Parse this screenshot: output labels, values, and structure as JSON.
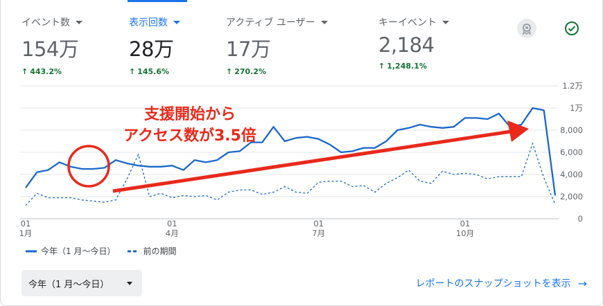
{
  "metrics": [
    {
      "label": "イベント数",
      "value": "154万",
      "change": "443.2%"
    },
    {
      "label": "表示回数",
      "value": "28万",
      "change": "145.6%"
    },
    {
      "label": "アクティブ ユーザー",
      "value": "17万",
      "change": "270.2%"
    },
    {
      "label": "キーイベント",
      "value": "2,184",
      "change": "1,248.1%"
    }
  ],
  "icons": {
    "badge": "award-badge-icon",
    "check": "check-circle-icon"
  },
  "colors": {
    "accent": "#1a73e8",
    "line": "#1a66cc",
    "positive": "#137333",
    "annotation": "#e8291b"
  },
  "annotation": {
    "line1": "支援開始から",
    "line2": "アクセス数が3.5倍"
  },
  "legend": {
    "current": "今年（1 月〜今日）",
    "previous": "前の期間"
  },
  "dropdown": {
    "label": "今年（1 月〜今日）"
  },
  "snapshot_link": "レポートのスナップショットを表示",
  "chart_data": {
    "type": "line",
    "grid": true,
    "y_axis_position": "right",
    "ylim": [
      0,
      12000
    ],
    "yticks": [
      {
        "value": 0,
        "label": "0"
      },
      {
        "value": 2000,
        "label": "2,000"
      },
      {
        "value": 4000,
        "label": "4,000"
      },
      {
        "value": 6000,
        "label": "6,000"
      },
      {
        "value": 8000,
        "label": "8,000"
      },
      {
        "value": 10000,
        "label": "1万"
      },
      {
        "value": 12000,
        "label": "1.2万"
      }
    ],
    "xticks": [
      {
        "index": 0,
        "day": "01",
        "month": "1月"
      },
      {
        "index": 13,
        "day": "01",
        "month": "4月"
      },
      {
        "index": 26,
        "day": "01",
        "month": "7月"
      },
      {
        "index": 39,
        "day": "01",
        "month": "10月"
      }
    ],
    "series": [
      {
        "name": "今年（1 月〜今日）",
        "style": "solid",
        "values": [
          2800,
          4200,
          4400,
          5100,
          4700,
          4500,
          4500,
          4600,
          5300,
          5000,
          4800,
          4700,
          4700,
          4800,
          4400,
          5300,
          5100,
          5300,
          6000,
          6100,
          6900,
          6900,
          8300,
          7000,
          7300,
          7400,
          7200,
          6700,
          6000,
          6100,
          6400,
          6400,
          7000,
          8000,
          8200,
          8500,
          8300,
          8200,
          8300,
          9100,
          9100,
          9000,
          9500,
          8300,
          8500,
          10000,
          9800,
          2100
        ]
      },
      {
        "name": "前の期間",
        "style": "dashed",
        "values": [
          1200,
          2300,
          1900,
          1900,
          1900,
          1700,
          1600,
          1500,
          1700,
          3600,
          5800,
          2000,
          2300,
          1900,
          2100,
          2000,
          2100,
          1700,
          2400,
          2600,
          2600,
          2200,
          2400,
          2900,
          2400,
          2300,
          3300,
          3400,
          3400,
          2900,
          3000,
          2400,
          3200,
          3700,
          4400,
          3400,
          3200,
          4300,
          4000,
          4100,
          4000,
          3600,
          3800,
          3800,
          3800,
          6800,
          3700,
          1300
        ]
      }
    ]
  }
}
